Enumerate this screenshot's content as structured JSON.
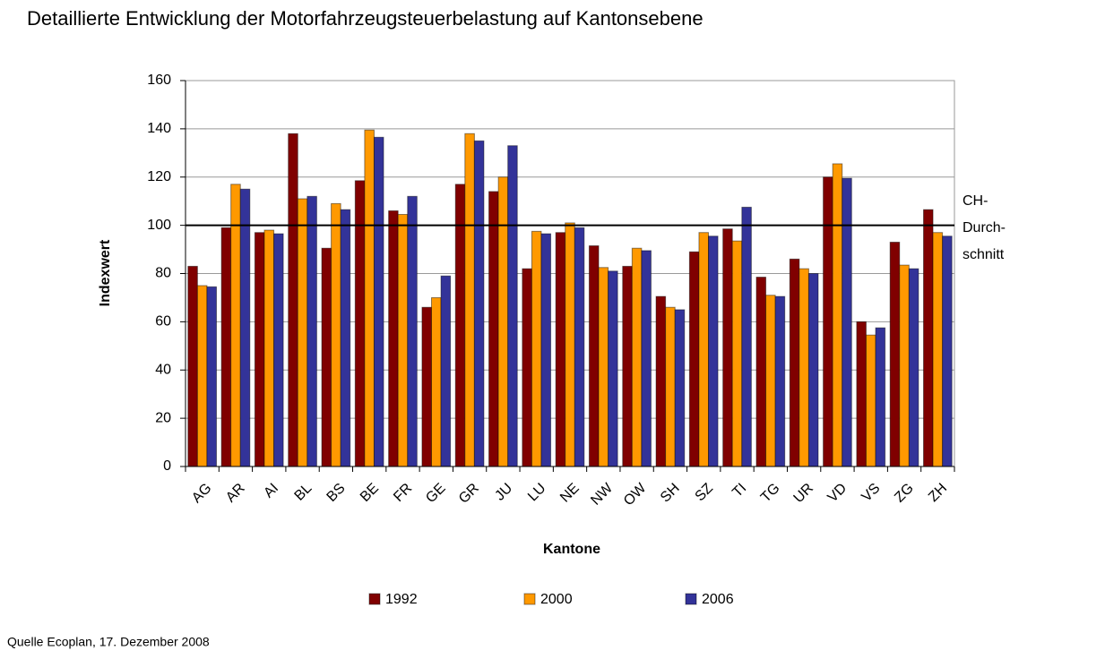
{
  "chart_data": {
    "type": "bar",
    "title": "Detaillierte Entwicklung der Motorfahrzeugsteuerbelastung auf Kantonsebene",
    "x_label": "Kantone",
    "y_label": "Indexwert",
    "source": "Quelle Ecoplan, 17. Dezember 2008",
    "categories": [
      "AG",
      "AR",
      "AI",
      "BL",
      "BS",
      "BE",
      "FR",
      "GE",
      "GR",
      "JU",
      "LU",
      "NE",
      "NW",
      "OW",
      "SH",
      "SZ",
      "TI",
      "TG",
      "UR",
      "VD",
      "VS",
      "ZG",
      "ZH"
    ],
    "series": [
      {
        "name": "1992",
        "color": "#800000",
        "values": [
          83,
          99,
          97,
          138,
          90.5,
          118.5,
          106,
          66,
          117,
          114,
          82,
          97,
          91.5,
          83,
          70.5,
          89,
          98.5,
          78.5,
          86,
          120,
          60,
          93,
          106.5
        ]
      },
      {
        "name": "2000",
        "color": "#ff9900",
        "values": [
          75,
          117,
          98,
          111,
          109,
          139.5,
          104.5,
          70,
          138,
          120,
          97.5,
          101,
          82.5,
          90.5,
          66,
          97,
          93.5,
          71,
          82,
          125.5,
          54.5,
          83.5,
          97
        ]
      },
      {
        "name": "2006",
        "color": "#333399",
        "values": [
          74.5,
          115,
          96.5,
          112,
          106.5,
          136.5,
          112,
          79,
          135,
          133,
          96.5,
          99,
          81,
          89.5,
          65,
          95.5,
          107.5,
          70.5,
          80,
          119.5,
          57.5,
          82,
          95.5
        ]
      }
    ],
    "reference_line": {
      "value": 100,
      "label": [
        "CH-",
        "Durch-",
        "schnitt"
      ]
    },
    "ylim": [
      0,
      160
    ],
    "yticks": [
      0,
      20,
      40,
      60,
      80,
      100,
      120,
      140,
      160
    ],
    "grid": true,
    "legend": "bottom"
  }
}
